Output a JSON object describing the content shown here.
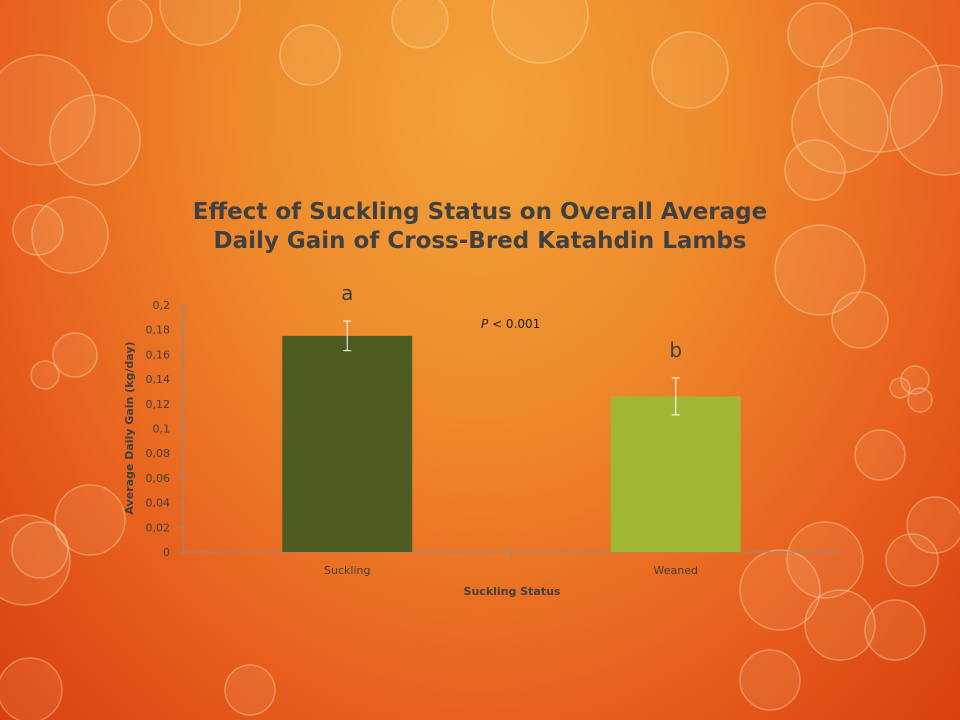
{
  "chart_data": {
    "type": "bar",
    "title": "Effect of Suckling Status on Overall Average Daily Gain of Cross-Bred Katahdin Lambs",
    "xlabel": "Suckling Status",
    "ylabel": "Average Daily Gain (kg/day)",
    "categories": [
      "Suckling",
      "Weaned"
    ],
    "values": [
      0.175,
      0.126
    ],
    "error": [
      0.012,
      0.015
    ],
    "bar_colors": [
      "#4e5b21",
      "#a2b636"
    ],
    "significance_letters": [
      "a",
      "b"
    ],
    "annotation": {
      "italic": "P",
      "text": " < 0.001"
    },
    "ylim": [
      0,
      0.2
    ],
    "yticks": [
      0,
      0.02,
      0.04,
      0.06,
      0.08,
      0.1,
      0.12,
      0.14,
      0.16,
      0.18,
      0.2
    ],
    "ytick_labels": [
      "0",
      "0,02",
      "0,04",
      "0,06",
      "0,08",
      "0,1",
      "0,12",
      "0,14",
      "0,16",
      "0,18",
      "0,2"
    ],
    "grid": false,
    "legend": "none"
  }
}
